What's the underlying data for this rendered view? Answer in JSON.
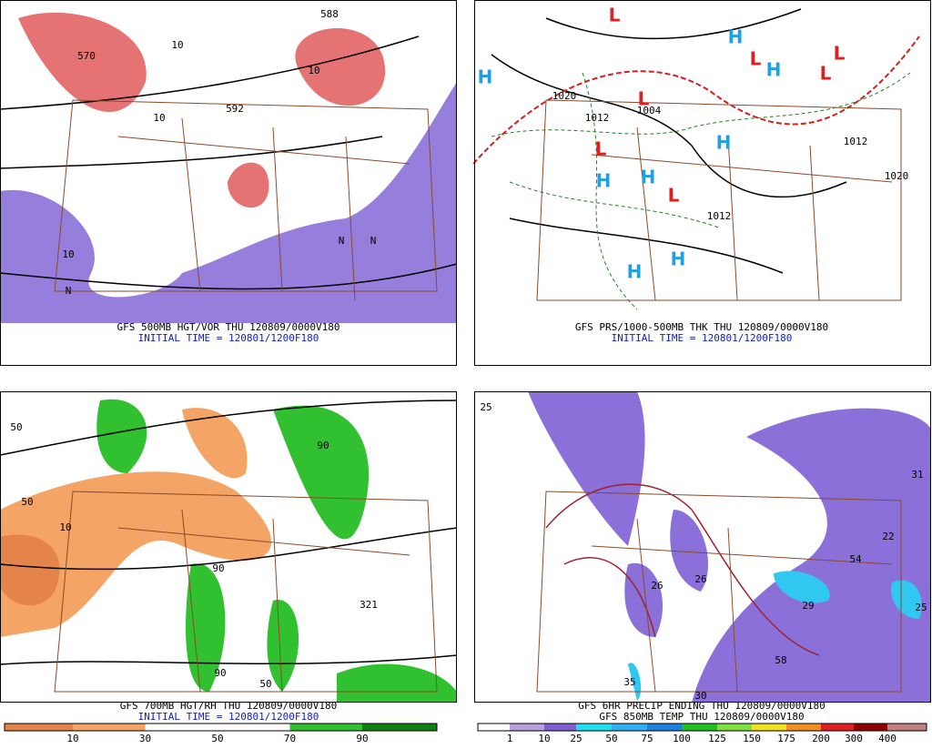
{
  "panels": [
    {
      "caption": "GFS 500MB HGT/VOR THU 120809/0000V180",
      "initial_time": "INITIAL TIME = 120801/1200F180",
      "labels": [
        "570",
        "592",
        "588",
        "10",
        "10",
        "10",
        "N",
        "N",
        "N",
        "10"
      ]
    },
    {
      "caption": "GFS PRS/1000-500MB THK THU 120809/0000V180",
      "initial_time": "INITIAL TIME = 120801/1200F180",
      "labels": [
        "H",
        "H",
        "H",
        "H",
        "H",
        "H",
        "H",
        "H",
        "L",
        "L",
        "L",
        "L",
        "L",
        "L",
        "L",
        "1020",
        "1012",
        "1004",
        "1012",
        "1020",
        "1012"
      ]
    },
    {
      "caption": "GFS 700MB HGT/RH THU 120809/0000V180",
      "initial_time": "INITIAL TIME = 120801/1200F180",
      "labels": [
        "50",
        "50",
        "90",
        "90",
        "90",
        "50",
        "321",
        "10"
      ]
    },
    {
      "caption": "GFS 6HR PRECIP ENDING THU 120809/0000V180",
      "initial_time": "GFS 850MB TEMP THU 120809/0000V180",
      "labels": [
        "25",
        "31",
        "22",
        "54",
        "29",
        "25",
        "58",
        "35",
        "30",
        "26",
        "26"
      ]
    }
  ],
  "colorbars": [
    {
      "labels": [
        10,
        30,
        50,
        70,
        90
      ],
      "colors": [
        "#e4844a",
        "#f4a464",
        "#ffffff",
        "#ffffff",
        "#30c030",
        "#108010"
      ]
    },
    {
      "labels": [
        1,
        10,
        25,
        50,
        75,
        100,
        125,
        150,
        175,
        200,
        300,
        400
      ],
      "colors": [
        "#ffffff",
        "#b8a0e0",
        "#8060d0",
        "#20e0f0",
        "#30b0f0",
        "#2080e0",
        "#20c020",
        "#80e040",
        "#f0e020",
        "#f09020",
        "#e02020",
        "#900000",
        "#c08080"
      ]
    }
  ]
}
